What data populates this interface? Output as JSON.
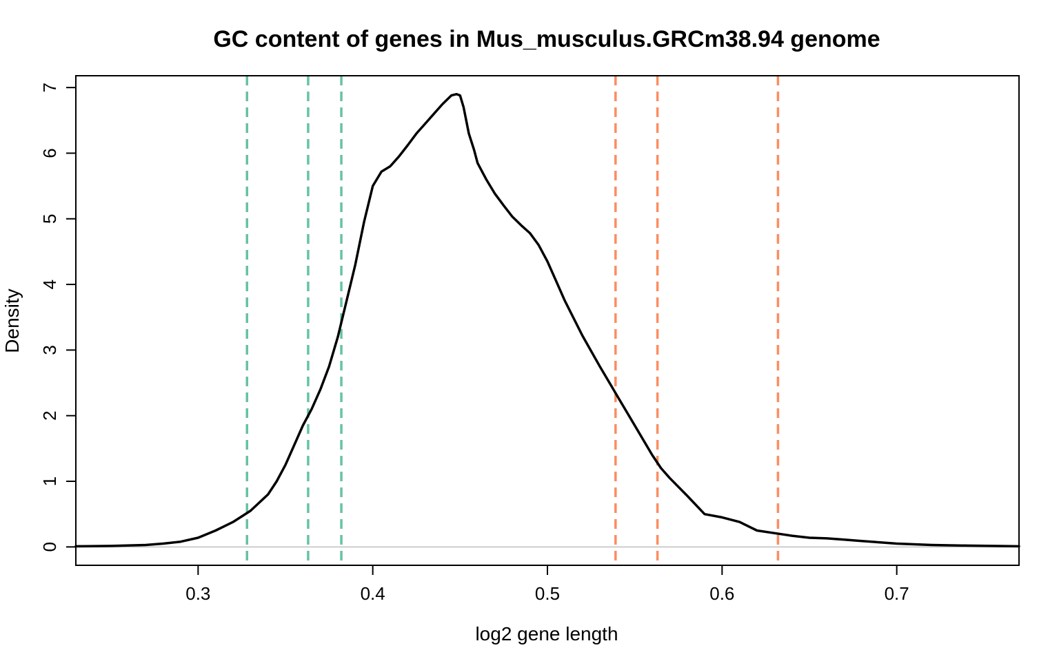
{
  "chart_data": {
    "type": "line",
    "title": "GC content of genes in Mus_musculus.GRCm38.94 genome",
    "xlabel": "log2 gene length",
    "ylabel": "Density",
    "xlim": [
      0.23,
      0.77
    ],
    "ylim": [
      -0.28,
      7.18
    ],
    "grid": false,
    "xticks": [
      0.3,
      0.4,
      0.5,
      0.6,
      0.7
    ],
    "yticks": [
      0,
      1,
      2,
      3,
      4,
      5,
      6,
      7
    ],
    "baseline": {
      "y": 0,
      "color": "#bebebe"
    },
    "series": [
      {
        "color": "#000000",
        "x": [
          0.23,
          0.25,
          0.27,
          0.28,
          0.29,
          0.3,
          0.31,
          0.32,
          0.33,
          0.34,
          0.345,
          0.35,
          0.355,
          0.36,
          0.365,
          0.37,
          0.375,
          0.38,
          0.385,
          0.39,
          0.395,
          0.4,
          0.405,
          0.41,
          0.415,
          0.42,
          0.425,
          0.43,
          0.435,
          0.44,
          0.445,
          0.448,
          0.45,
          0.452,
          0.455,
          0.458,
          0.46,
          0.465,
          0.47,
          0.475,
          0.48,
          0.485,
          0.49,
          0.495,
          0.5,
          0.505,
          0.51,
          0.52,
          0.53,
          0.54,
          0.55,
          0.56,
          0.565,
          0.57,
          0.58,
          0.59,
          0.6,
          0.61,
          0.62,
          0.63,
          0.64,
          0.65,
          0.66,
          0.67,
          0.68,
          0.69,
          0.7,
          0.72,
          0.74,
          0.77
        ],
        "y": [
          0.01,
          0.015,
          0.03,
          0.05,
          0.08,
          0.14,
          0.25,
          0.38,
          0.55,
          0.8,
          1.0,
          1.25,
          1.55,
          1.85,
          2.1,
          2.4,
          2.75,
          3.2,
          3.75,
          4.3,
          4.95,
          5.5,
          5.72,
          5.8,
          5.95,
          6.12,
          6.3,
          6.45,
          6.6,
          6.75,
          6.88,
          6.9,
          6.88,
          6.7,
          6.3,
          6.05,
          5.85,
          5.6,
          5.38,
          5.2,
          5.03,
          4.9,
          4.78,
          4.6,
          4.35,
          4.05,
          3.75,
          3.22,
          2.75,
          2.3,
          1.85,
          1.4,
          1.2,
          1.05,
          0.78,
          0.5,
          0.45,
          0.38,
          0.25,
          0.21,
          0.17,
          0.14,
          0.13,
          0.11,
          0.09,
          0.07,
          0.05,
          0.03,
          0.02,
          0.01
        ]
      }
    ],
    "vlines": [
      {
        "x": 0.328,
        "color": "#66c2a5",
        "style": "dashed"
      },
      {
        "x": 0.363,
        "color": "#66c2a5",
        "style": "dashed"
      },
      {
        "x": 0.382,
        "color": "#66c2a5",
        "style": "dashed"
      },
      {
        "x": 0.539,
        "color": "#fc8d62",
        "style": "dashed"
      },
      {
        "x": 0.563,
        "color": "#fc8d62",
        "style": "dashed"
      },
      {
        "x": 0.632,
        "color": "#fc8d62",
        "style": "dashed"
      }
    ]
  }
}
